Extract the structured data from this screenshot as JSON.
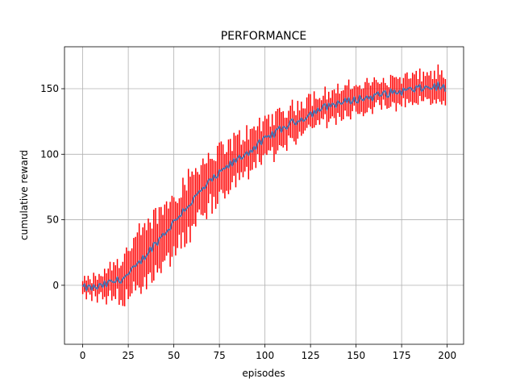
{
  "chart_data": {
    "type": "line",
    "title": "PERFORMANCE",
    "xlabel": "episodes",
    "ylabel": "cumulative reward",
    "xlim": [
      -10,
      209
    ],
    "ylim": [
      -45,
      182
    ],
    "xticks": [
      0,
      25,
      50,
      75,
      100,
      125,
      150,
      175,
      200
    ],
    "yticks": [
      0,
      50,
      100,
      150
    ],
    "grid": true,
    "colors": {
      "mean": "#4c72b0",
      "error": "#ff0000"
    },
    "series": [
      {
        "style": "line-with-error-bars",
        "x": [
          0,
          5,
          10,
          15,
          20,
          25,
          30,
          35,
          40,
          45,
          50,
          55,
          60,
          65,
          70,
          75,
          80,
          85,
          90,
          95,
          100,
          105,
          110,
          115,
          120,
          125,
          130,
          135,
          140,
          145,
          150,
          155,
          160,
          165,
          170,
          175,
          180,
          185,
          190,
          195,
          199
        ],
        "mean": [
          -2,
          -2,
          -1,
          2,
          4,
          8,
          15,
          24,
          32,
          40,
          48,
          57,
          64,
          72,
          79,
          85,
          91,
          96,
          101,
          106,
          111,
          116,
          120,
          124,
          127,
          131,
          134,
          137,
          139,
          140,
          142,
          143,
          144,
          146,
          147,
          148,
          149,
          150,
          151,
          152,
          150
        ],
        "error": [
          6,
          8,
          10,
          14,
          18,
          22,
          24,
          24,
          24,
          24,
          24,
          24,
          24,
          24,
          22,
          20,
          20,
          18,
          18,
          16,
          16,
          16,
          14,
          14,
          14,
          14,
          13,
          12,
          12,
          12,
          12,
          12,
          12,
          12,
          12,
          12,
          12,
          12,
          12,
          12,
          10
        ]
      }
    ]
  }
}
